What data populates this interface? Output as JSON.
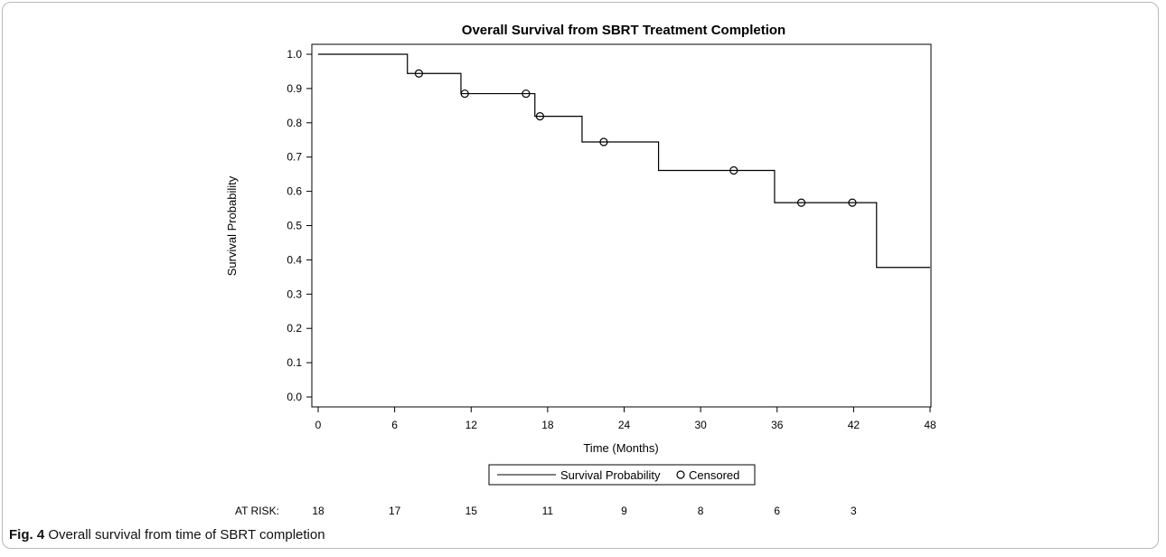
{
  "caption": {
    "label": "Fig. 4",
    "text": "Overall survival from time of SBRT completion"
  },
  "chart_data": {
    "type": "line",
    "subtype": "kaplan-meier",
    "title": "Overall Survival from SBRT Treatment Completion",
    "xlabel": "Time (Months)",
    "ylabel": "Survival Probability",
    "xlim": [
      0,
      48
    ],
    "ylim": [
      0,
      1.0
    ],
    "x_ticks": [
      0,
      6,
      12,
      18,
      24,
      30,
      36,
      42,
      48
    ],
    "y_ticks": [
      0.0,
      0.1,
      0.2,
      0.3,
      0.4,
      0.5,
      0.6,
      0.7,
      0.8,
      0.9,
      1.0
    ],
    "y_tick_labels": [
      "0.0",
      "0.1",
      "0.2",
      "0.3",
      "0.4",
      "0.5",
      "0.6",
      "0.7",
      "0.8",
      "0.9",
      "1.0"
    ],
    "grid": false,
    "legend_position": "bottom-center",
    "series": [
      {
        "name": "Survival Probability",
        "style": "step",
        "color": "#000000",
        "x": [
          0,
          7,
          11.2,
          17,
          20.7,
          26.7,
          35.8,
          43.8,
          48
        ],
        "y": [
          1.0,
          0.944,
          0.885,
          0.819,
          0.744,
          0.661,
          0.567,
          0.378,
          0.378
        ]
      },
      {
        "name": "Censored",
        "style": "marker",
        "marker": "circle-open",
        "color": "#000000",
        "x": [
          7.9,
          11.5,
          16.3,
          17.4,
          22.4,
          32.6,
          37.9,
          41.9
        ],
        "y": [
          0.944,
          0.885,
          0.885,
          0.819,
          0.744,
          0.661,
          0.567,
          0.567
        ]
      }
    ],
    "at_risk": {
      "label": "AT RISK:",
      "times": [
        0,
        6,
        12,
        18,
        24,
        30,
        36,
        42
      ],
      "counts": [
        "18",
        "17",
        "15",
        "11",
        "9",
        "8",
        "6",
        "3"
      ]
    }
  }
}
